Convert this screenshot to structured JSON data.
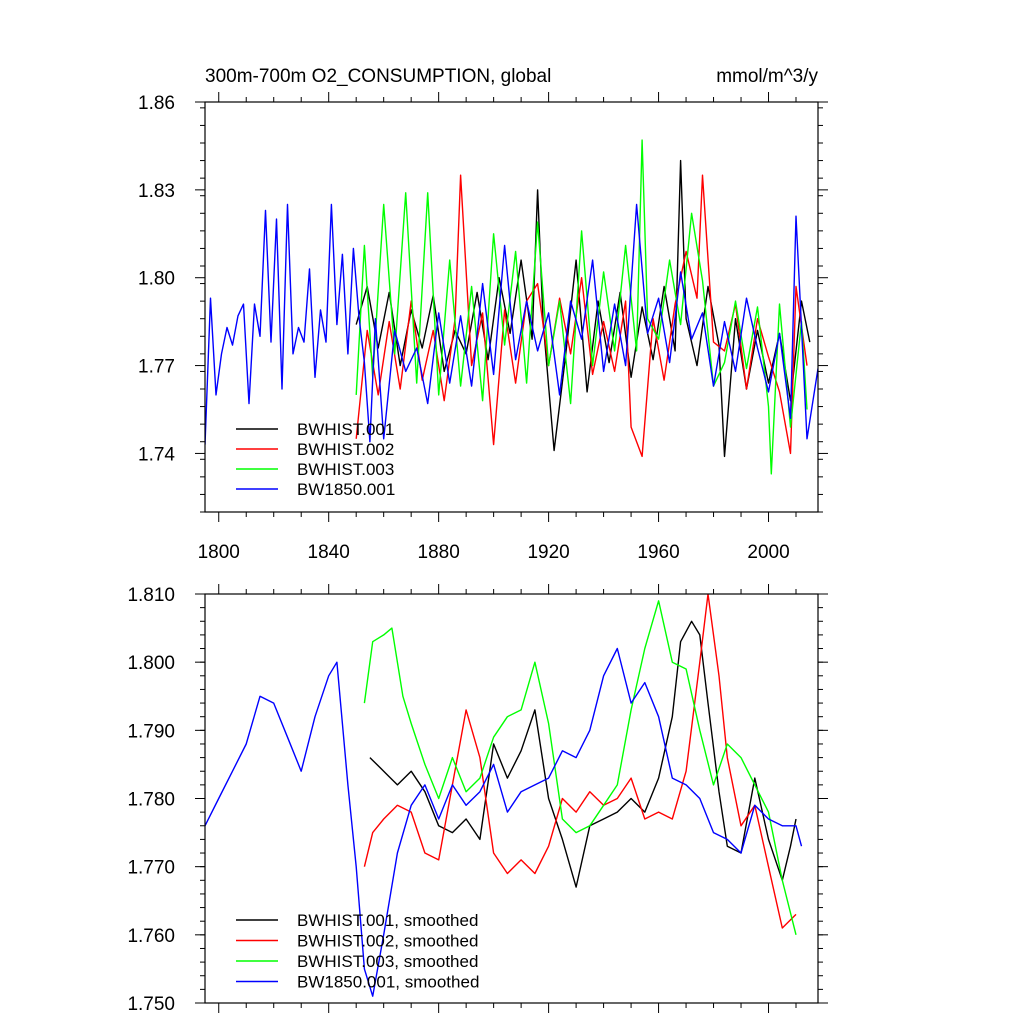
{
  "chart_data": [
    {
      "type": "line",
      "title": "300m-700m O2_CONSUMPTION, global",
      "units": "mmol/m^3/y",
      "xlabel": "",
      "ylabel": "",
      "xlim": [
        1795,
        2018
      ],
      "ylim": [
        1.72,
        1.86
      ],
      "x_ticks": [
        1800,
        1840,
        1880,
        1920,
        1960,
        2000
      ],
      "x_tick_labels": [
        "1800",
        "1840",
        "1880",
        "1920",
        "1960",
        "2000"
      ],
      "y_ticks": [
        1.74,
        1.77,
        1.8,
        1.83,
        1.86
      ],
      "y_tick_labels": [
        "1.74",
        "1.77",
        "1.80",
        "1.83",
        "1.86"
      ],
      "legend_position": "bottom-left",
      "series": [
        {
          "name": "BWHIST.001",
          "color": "#000000",
          "x": [
            1850,
            1854,
            1858,
            1862,
            1866,
            1870,
            1874,
            1878,
            1882,
            1886,
            1890,
            1894,
            1898,
            1902,
            1906,
            1910,
            1914,
            1916,
            1918,
            1922,
            1926,
            1930,
            1934,
            1938,
            1942,
            1946,
            1950,
            1954,
            1958,
            1962,
            1966,
            1968,
            1970,
            1974,
            1978,
            1982,
            1984,
            1988,
            1992,
            1996,
            2000,
            2004,
            2008,
            2012,
            2015
          ],
          "values": [
            1.784,
            1.797,
            1.776,
            1.795,
            1.77,
            1.789,
            1.776,
            1.794,
            1.768,
            1.782,
            1.774,
            1.795,
            1.772,
            1.8,
            1.781,
            1.806,
            1.779,
            1.83,
            1.785,
            1.741,
            1.772,
            1.806,
            1.761,
            1.792,
            1.771,
            1.795,
            1.766,
            1.79,
            1.772,
            1.797,
            1.775,
            1.84,
            1.786,
            1.77,
            1.797,
            1.777,
            1.739,
            1.786,
            1.762,
            1.782,
            1.764,
            1.781,
            1.758,
            1.792,
            1.778
          ]
        },
        {
          "name": "BWHIST.002",
          "color": "#ff0000",
          "x": [
            1850,
            1854,
            1858,
            1862,
            1866,
            1870,
            1874,
            1878,
            1882,
            1886,
            1888,
            1892,
            1896,
            1900,
            1904,
            1908,
            1912,
            1916,
            1920,
            1924,
            1928,
            1932,
            1936,
            1940,
            1944,
            1948,
            1950,
            1954,
            1958,
            1962,
            1966,
            1970,
            1974,
            1976,
            1980,
            1984,
            1988,
            1992,
            1996,
            2000,
            2004,
            2008,
            2010,
            2014
          ],
          "values": [
            1.745,
            1.782,
            1.76,
            1.785,
            1.762,
            1.792,
            1.765,
            1.782,
            1.758,
            1.786,
            1.835,
            1.77,
            1.788,
            1.743,
            1.789,
            1.764,
            1.792,
            1.798,
            1.77,
            1.793,
            1.774,
            1.8,
            1.767,
            1.785,
            1.768,
            1.792,
            1.749,
            1.739,
            1.786,
            1.765,
            1.791,
            1.809,
            1.793,
            1.835,
            1.778,
            1.775,
            1.791,
            1.762,
            1.786,
            1.773,
            1.761,
            1.74,
            1.797,
            1.77
          ]
        },
        {
          "name": "BWHIST.003",
          "color": "#00ff00",
          "x": [
            1850,
            1853,
            1856,
            1860,
            1864,
            1868,
            1872,
            1876,
            1880,
            1884,
            1888,
            1892,
            1896,
            1900,
            1904,
            1908,
            1912,
            1916,
            1920,
            1924,
            1928,
            1932,
            1936,
            1940,
            1944,
            1948,
            1952,
            1954,
            1956,
            1960,
            1964,
            1968,
            1972,
            1976,
            1980,
            1984,
            1988,
            1992,
            1996,
            2000,
            2001,
            2004,
            2008,
            2012,
            2014
          ],
          "values": [
            1.76,
            1.811,
            1.766,
            1.825,
            1.774,
            1.829,
            1.764,
            1.829,
            1.76,
            1.806,
            1.763,
            1.797,
            1.758,
            1.815,
            1.777,
            1.809,
            1.764,
            1.819,
            1.77,
            1.792,
            1.757,
            1.816,
            1.77,
            1.802,
            1.775,
            1.811,
            1.775,
            1.847,
            1.786,
            1.779,
            1.806,
            1.784,
            1.822,
            1.799,
            1.763,
            1.771,
            1.792,
            1.769,
            1.79,
            1.756,
            1.733,
            1.791,
            1.749,
            1.785,
            1.755
          ]
        },
        {
          "name": "BW1850.001",
          "color": "#0000ff",
          "x": [
            1795,
            1797,
            1799,
            1801,
            1803,
            1805,
            1807,
            1809,
            1811,
            1813,
            1815,
            1817,
            1819,
            1821,
            1823,
            1825,
            1827,
            1829,
            1831,
            1833,
            1835,
            1837,
            1839,
            1841,
            1843,
            1845,
            1847,
            1849,
            1851,
            1853,
            1855,
            1857,
            1860,
            1864,
            1868,
            1872,
            1876,
            1880,
            1884,
            1888,
            1892,
            1896,
            1900,
            1904,
            1908,
            1912,
            1916,
            1920,
            1924,
            1928,
            1932,
            1936,
            1940,
            1944,
            1948,
            1952,
            1956,
            1960,
            1964,
            1968,
            1972,
            1976,
            1980,
            1984,
            1988,
            1992,
            1996,
            2000,
            2004,
            2008,
            2010,
            2014,
            2018
          ],
          "values": [
            1.743,
            1.793,
            1.76,
            1.774,
            1.783,
            1.777,
            1.787,
            1.791,
            1.757,
            1.791,
            1.78,
            1.823,
            1.778,
            1.82,
            1.762,
            1.825,
            1.774,
            1.783,
            1.778,
            1.803,
            1.766,
            1.789,
            1.778,
            1.825,
            1.784,
            1.808,
            1.774,
            1.81,
            1.787,
            1.771,
            1.744,
            1.786,
            1.745,
            1.782,
            1.768,
            1.776,
            1.757,
            1.788,
            1.764,
            1.787,
            1.763,
            1.798,
            1.767,
            1.811,
            1.772,
            1.792,
            1.775,
            1.788,
            1.76,
            1.792,
            1.779,
            1.806,
            1.768,
            1.791,
            1.77,
            1.825,
            1.781,
            1.793,
            1.771,
            1.802,
            1.779,
            1.788,
            1.763,
            1.785,
            1.768,
            1.793,
            1.776,
            1.761,
            1.781,
            1.752,
            1.821,
            1.745,
            1.769
          ]
        }
      ]
    },
    {
      "type": "line",
      "title": "",
      "xlabel": "",
      "ylabel": "",
      "xlim": [
        1795,
        2018
      ],
      "ylim": [
        1.75,
        1.81
      ],
      "x_ticks": [
        1800,
        1840,
        1880,
        1920,
        1960,
        2000
      ],
      "y_ticks": [
        1.75,
        1.76,
        1.77,
        1.78,
        1.79,
        1.8,
        1.81
      ],
      "y_tick_labels": [
        "1.750",
        "1.760",
        "1.770",
        "1.780",
        "1.790",
        "1.800",
        "1.810"
      ],
      "legend_position": "bottom-left",
      "series": [
        {
          "name": "BWHIST.001, smoothed",
          "color": "#000000",
          "x": [
            1855,
            1860,
            1865,
            1870,
            1875,
            1880,
            1885,
            1890,
            1895,
            1900,
            1905,
            1910,
            1915,
            1920,
            1925,
            1930,
            1935,
            1940,
            1945,
            1950,
            1955,
            1960,
            1965,
            1968,
            1972,
            1975,
            1978,
            1982,
            1985,
            1990,
            1995,
            2000,
            2005,
            2008,
            2010
          ],
          "values": [
            1.786,
            1.784,
            1.782,
            1.784,
            1.781,
            1.776,
            1.775,
            1.777,
            1.774,
            1.788,
            1.783,
            1.787,
            1.793,
            1.78,
            1.774,
            1.767,
            1.776,
            1.777,
            1.778,
            1.78,
            1.778,
            1.783,
            1.792,
            1.803,
            1.806,
            1.804,
            1.794,
            1.781,
            1.773,
            1.772,
            1.783,
            1.774,
            1.768,
            1.773,
            1.777
          ]
        },
        {
          "name": "BWHIST.002, smoothed",
          "color": "#ff0000",
          "x": [
            1853,
            1856,
            1860,
            1865,
            1870,
            1875,
            1880,
            1885,
            1890,
            1895,
            1900,
            1905,
            1910,
            1915,
            1920,
            1925,
            1930,
            1935,
            1940,
            1945,
            1950,
            1955,
            1960,
            1965,
            1970,
            1975,
            1978,
            1982,
            1985,
            1990,
            1995,
            2000,
            2005,
            2010
          ],
          "values": [
            1.77,
            1.775,
            1.777,
            1.779,
            1.778,
            1.772,
            1.771,
            1.782,
            1.793,
            1.786,
            1.772,
            1.769,
            1.771,
            1.769,
            1.773,
            1.78,
            1.778,
            1.781,
            1.779,
            1.78,
            1.783,
            1.777,
            1.778,
            1.777,
            1.784,
            1.8,
            1.81,
            1.798,
            1.786,
            1.776,
            1.779,
            1.77,
            1.761,
            1.763
          ]
        },
        {
          "name": "BWHIST.003, smoothed",
          "color": "#00ff00",
          "x": [
            1853,
            1856,
            1860,
            1863,
            1867,
            1870,
            1875,
            1880,
            1885,
            1890,
            1895,
            1900,
            1905,
            1910,
            1915,
            1920,
            1925,
            1930,
            1935,
            1940,
            1945,
            1950,
            1955,
            1960,
            1965,
            1970,
            1975,
            1980,
            1985,
            1990,
            1995,
            2000,
            2005,
            2010
          ],
          "values": [
            1.794,
            1.803,
            1.804,
            1.805,
            1.795,
            1.791,
            1.785,
            1.78,
            1.786,
            1.781,
            1.783,
            1.789,
            1.792,
            1.793,
            1.8,
            1.791,
            1.777,
            1.775,
            1.776,
            1.779,
            1.782,
            1.793,
            1.802,
            1.809,
            1.8,
            1.799,
            1.79,
            1.782,
            1.788,
            1.786,
            1.782,
            1.778,
            1.768,
            1.76
          ]
        },
        {
          "name": "BW1850.001, smoothed",
          "color": "#0000ff",
          "x": [
            1795,
            1800,
            1805,
            1810,
            1815,
            1820,
            1825,
            1830,
            1835,
            1840,
            1843,
            1847,
            1850,
            1853,
            1856,
            1860,
            1865,
            1870,
            1875,
            1880,
            1885,
            1890,
            1895,
            1900,
            1905,
            1910,
            1915,
            1920,
            1925,
            1930,
            1935,
            1940,
            1945,
            1950,
            1955,
            1960,
            1965,
            1970,
            1975,
            1980,
            1985,
            1990,
            1995,
            2000,
            2005,
            2010,
            2012
          ],
          "values": [
            1.776,
            1.78,
            1.784,
            1.788,
            1.795,
            1.794,
            1.789,
            1.784,
            1.792,
            1.798,
            1.8,
            1.782,
            1.77,
            1.755,
            1.751,
            1.76,
            1.772,
            1.779,
            1.782,
            1.777,
            1.782,
            1.779,
            1.781,
            1.785,
            1.778,
            1.781,
            1.782,
            1.783,
            1.787,
            1.786,
            1.79,
            1.798,
            1.802,
            1.794,
            1.797,
            1.792,
            1.783,
            1.782,
            1.78,
            1.775,
            1.774,
            1.772,
            1.779,
            1.777,
            1.776,
            1.776,
            1.773
          ]
        }
      ]
    }
  ]
}
